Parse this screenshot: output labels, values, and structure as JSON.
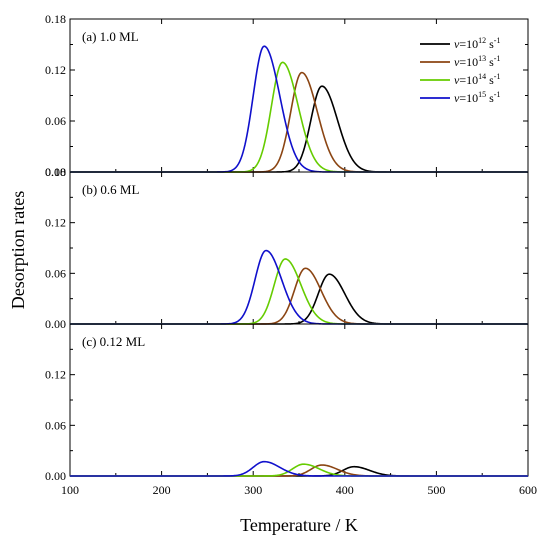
{
  "chart_data": {
    "type": "line",
    "xlabel": "Temperature / K",
    "ylabel": "Desorption rates",
    "xlim": [
      100,
      600
    ],
    "xticks": [
      "100",
      "200",
      "300",
      "400",
      "500",
      "600"
    ],
    "ylim": [
      0,
      0.18
    ],
    "legend": {
      "placement": "top-right",
      "entries": [
        {
          "prefix": "v=10",
          "exp": "12",
          "unit": " s",
          "unit_exp": "-1",
          "color": "#000000"
        },
        {
          "prefix": "v=10",
          "exp": "13",
          "unit": " s",
          "unit_exp": "-1",
          "color": "#8B4513"
        },
        {
          "prefix": "v=10",
          "exp": "14",
          "unit": " s",
          "unit_exp": "-1",
          "color": "#66CC00"
        },
        {
          "prefix": "v=10",
          "exp": "15",
          "unit": " s",
          "unit_exp": "-1",
          "color": "#1010CC"
        }
      ]
    },
    "panels": [
      {
        "label": "(a) 1.0 ML",
        "yticks": [
          "0.18",
          "0.12",
          "0.06",
          "0.00"
        ],
        "series": [
          {
            "color": "#000000",
            "peak_x": 375,
            "peak_y": 0.101
          },
          {
            "color": "#8B4513",
            "peak_x": 353,
            "peak_y": 0.117
          },
          {
            "color": "#66CC00",
            "peak_x": 332,
            "peak_y": 0.129
          },
          {
            "color": "#1010CC",
            "peak_x": 312,
            "peak_y": 0.148
          }
        ]
      },
      {
        "label": "(b) 0.6 ML",
        "yticks": [
          "0.18",
          "0.12",
          "0.06",
          "0.00"
        ],
        "series": [
          {
            "color": "#000000",
            "peak_x": 383,
            "peak_y": 0.059
          },
          {
            "color": "#8B4513",
            "peak_x": 357,
            "peak_y": 0.066
          },
          {
            "color": "#66CC00",
            "peak_x": 335,
            "peak_y": 0.077
          },
          {
            "color": "#1010CC",
            "peak_x": 314,
            "peak_y": 0.087
          }
        ]
      },
      {
        "label": "(c) 0.12 ML",
        "yticks": [
          "0.12",
          "0.06",
          "0.00"
        ],
        "series": [
          {
            "color": "#000000",
            "peak_x": 410,
            "peak_y": 0.011
          },
          {
            "color": "#8B4513",
            "peak_x": 375,
            "peak_y": 0.013
          },
          {
            "color": "#66CC00",
            "peak_x": 355,
            "peak_y": 0.014
          },
          {
            "color": "#1010CC",
            "peak_x": 312,
            "peak_y": 0.017
          }
        ]
      }
    ]
  }
}
